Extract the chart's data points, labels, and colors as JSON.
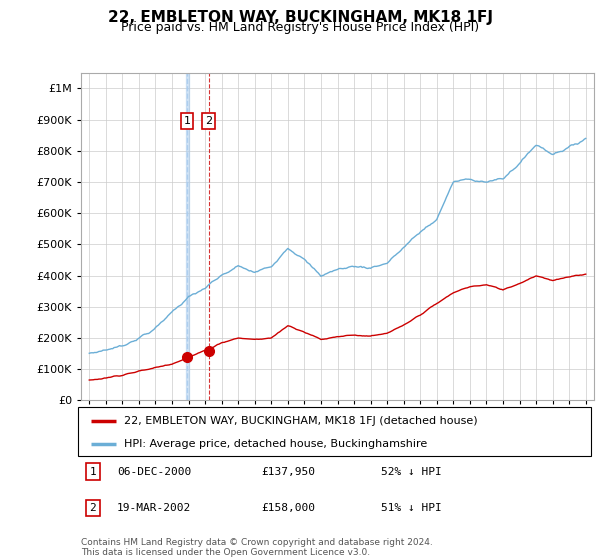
{
  "title": "22, EMBLETON WAY, BUCKINGHAM, MK18 1FJ",
  "subtitle": "Price paid vs. HM Land Registry's House Price Index (HPI)",
  "legend_line1": "22, EMBLETON WAY, BUCKINGHAM, MK18 1FJ (detached house)",
  "legend_line2": "HPI: Average price, detached house, Buckinghamshire",
  "transaction1_date": "06-DEC-2000",
  "transaction1_price": "£137,950",
  "transaction1_hpi": "52% ↓ HPI",
  "transaction2_date": "19-MAR-2002",
  "transaction2_price": "£158,000",
  "transaction2_hpi": "51% ↓ HPI",
  "footnote": "Contains HM Land Registry data © Crown copyright and database right 2024.\nThis data is licensed under the Open Government Licence v3.0.",
  "hpi_color": "#6baed6",
  "price_color": "#cc0000",
  "vline1_color": "#aaccee",
  "vline2_color": "#cc0000",
  "marker_color": "#cc0000",
  "box_color": "#cc0000",
  "ylim_max": 1050000,
  "ylim_min": 0,
  "hpi_anchors_years": [
    1995,
    1996,
    1997,
    1998,
    1999,
    2000,
    2001,
    2002,
    2003,
    2004,
    2005,
    2006,
    2007,
    2008,
    2009,
    2010,
    2011,
    2012,
    2013,
    2014,
    2015,
    2016,
    2017,
    2018,
    2019,
    2020,
    2021,
    2022,
    2023,
    2024,
    2025
  ],
  "hpi_anchors_vals": [
    150000,
    162000,
    175000,
    200000,
    230000,
    285000,
    330000,
    360000,
    400000,
    430000,
    410000,
    430000,
    490000,
    450000,
    400000,
    420000,
    430000,
    425000,
    440000,
    490000,
    540000,
    580000,
    700000,
    710000,
    700000,
    710000,
    760000,
    820000,
    790000,
    810000,
    840000
  ],
  "price_anchors_years": [
    1995,
    1996,
    1997,
    1998,
    1999,
    2000,
    2001,
    2002,
    2003,
    2004,
    2005,
    2006,
    2007,
    2008,
    2009,
    2010,
    2011,
    2012,
    2013,
    2014,
    2015,
    2016,
    2017,
    2018,
    2019,
    2020,
    2021,
    2022,
    2023,
    2024,
    2025
  ],
  "price_anchors_vals": [
    65000,
    72000,
    82000,
    93000,
    105000,
    118000,
    138000,
    160000,
    185000,
    200000,
    195000,
    200000,
    240000,
    220000,
    195000,
    205000,
    210000,
    205000,
    215000,
    240000,
    275000,
    310000,
    345000,
    365000,
    370000,
    355000,
    375000,
    400000,
    385000,
    395000,
    405000
  ],
  "t1_year_float": 2000.917,
  "t1_price": 137950,
  "t2_year_float": 2002.208,
  "t2_price": 158000
}
